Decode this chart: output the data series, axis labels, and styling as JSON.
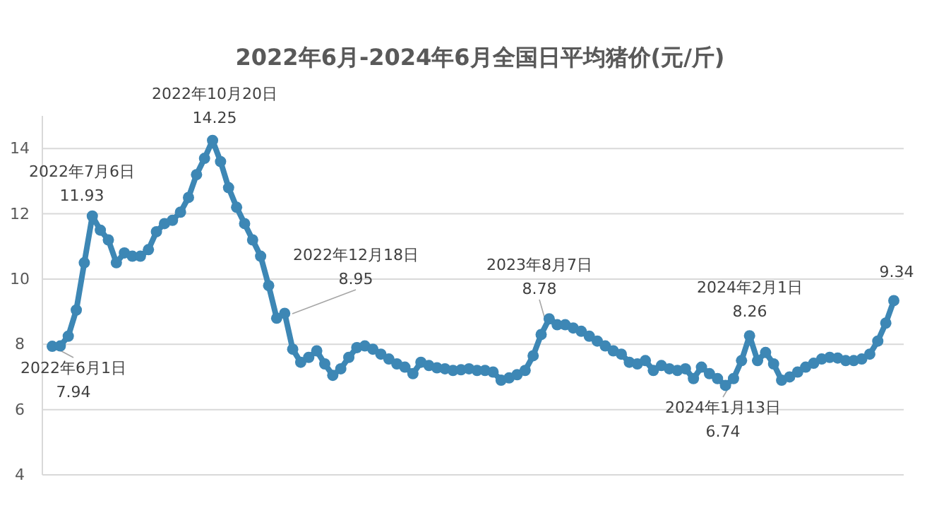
{
  "chart_data": {
    "type": "line",
    "title": "2022年6月-2024年6月全国日平均猪价(元/斤)",
    "marker": "circle",
    "grid": "y",
    "tick_labels": "y",
    "ylim": [
      4,
      15
    ],
    "yticks": [
      4,
      6,
      8,
      10,
      12,
      14
    ],
    "categories": [
      null,
      null,
      null,
      null,
      null,
      null,
      null,
      null,
      null,
      null,
      null,
      null,
      null,
      null,
      null,
      null,
      null,
      null,
      null,
      null,
      null,
      null,
      null,
      null,
      null,
      null,
      null,
      null,
      null,
      null,
      null,
      null,
      null,
      null,
      null,
      null,
      null,
      null,
      null,
      null,
      null,
      null,
      null,
      null,
      null,
      null,
      null,
      null,
      null,
      null,
      null,
      null,
      null,
      null,
      null,
      null,
      null,
      null,
      null,
      null,
      null,
      null,
      null,
      null,
      null,
      null,
      null,
      null,
      null,
      null,
      null,
      null,
      null,
      null,
      null,
      null,
      null,
      null,
      null,
      null,
      null,
      null,
      null,
      null,
      null,
      null,
      null,
      null,
      null,
      null,
      null,
      null,
      null,
      null,
      null,
      null,
      null,
      null,
      null,
      null,
      null,
      null,
      null,
      null,
      null,
      null
    ],
    "series": [
      {
        "color": "#3d87b5",
        "values": [
          7.94,
          7.95,
          8.25,
          9.05,
          10.5,
          11.93,
          11.5,
          11.2,
          10.5,
          10.8,
          10.7,
          10.7,
          10.9,
          11.45,
          11.7,
          11.8,
          12.05,
          12.5,
          13.2,
          13.7,
          14.25,
          13.6,
          12.8,
          12.2,
          11.7,
          11.2,
          10.7,
          9.8,
          8.8,
          8.95,
          7.85,
          7.45,
          7.6,
          7.8,
          7.4,
          7.05,
          7.25,
          7.6,
          7.9,
          7.95,
          7.85,
          7.7,
          7.55,
          7.4,
          7.3,
          7.1,
          7.45,
          7.35,
          7.28,
          7.25,
          7.2,
          7.22,
          7.25,
          7.2,
          7.2,
          7.15,
          6.9,
          6.97,
          7.07,
          7.2,
          7.65,
          8.3,
          8.78,
          8.6,
          8.6,
          8.5,
          8.4,
          8.25,
          8.1,
          7.95,
          7.8,
          7.7,
          7.45,
          7.4,
          7.5,
          7.2,
          7.35,
          7.25,
          7.2,
          7.25,
          6.95,
          7.3,
          7.1,
          6.95,
          6.74,
          6.95,
          7.5,
          8.26,
          7.5,
          7.75,
          7.4,
          6.9,
          7.0,
          7.15,
          7.3,
          7.42,
          7.55,
          7.6,
          7.58,
          7.5,
          7.5,
          7.55,
          7.7,
          8.1,
          8.65,
          9.34
        ]
      }
    ],
    "annotations": [
      "2022年6月1日\n7.94",
      "2022年7月6日\n11.93",
      "2022年10月20日\n14.25",
      "2022年12月18日\n8.95",
      "2023年8月7日\n8.78",
      "2024年2月1日\n8.26",
      "2024年1月13日\n6.74",
      "9.34"
    ]
  }
}
